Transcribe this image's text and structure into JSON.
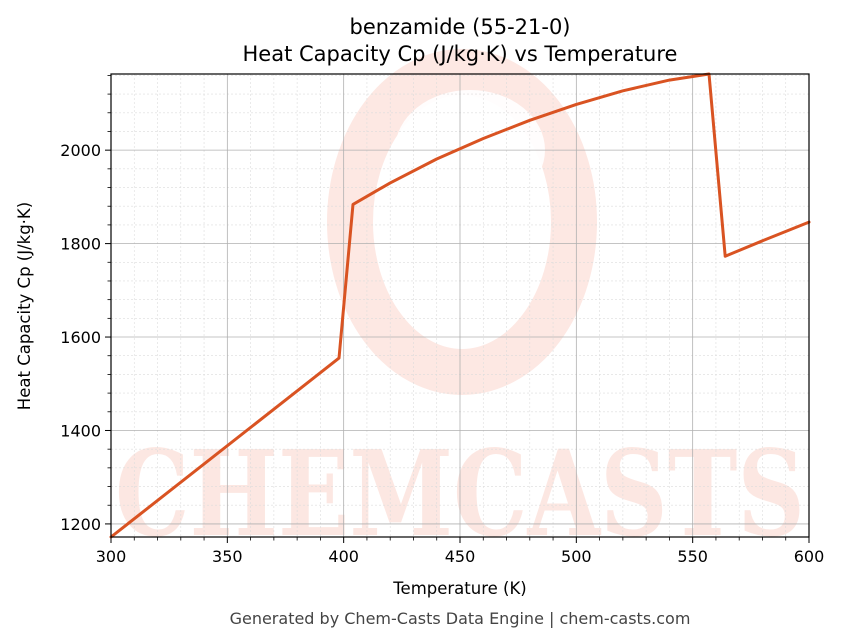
{
  "chart_data": {
    "type": "line",
    "title": "benzamide (55-21-0)",
    "subtitle": "Heat Capacity Cp (J/kg·K) vs Temperature",
    "xlabel": "Temperature (K)",
    "ylabel": "Heat Capacity Cp (J/kg·K)",
    "xlim": [
      300,
      600
    ],
    "ylim": [
      1172,
      2163
    ],
    "x_ticks": [
      300,
      350,
      400,
      450,
      500,
      550,
      600
    ],
    "y_ticks": [
      1200,
      1400,
      1600,
      1800,
      2000
    ],
    "grid": true,
    "series": [
      {
        "color": "#d95322",
        "x": [
          300,
          398,
          404,
          420,
          440,
          460,
          480,
          500,
          520,
          540,
          557,
          564,
          580,
          600
        ],
        "y": [
          1172,
          1555,
          1884,
          1930,
          1981,
          2025,
          2064,
          2098,
          2127,
          2150,
          2163,
          1773,
          1806,
          1846
        ]
      }
    ]
  },
  "watermark": {
    "text": "CHEMCASTS",
    "color": "#fbd5cc"
  },
  "footer": "Generated by Chem-Casts Data Engine | chem-casts.com"
}
